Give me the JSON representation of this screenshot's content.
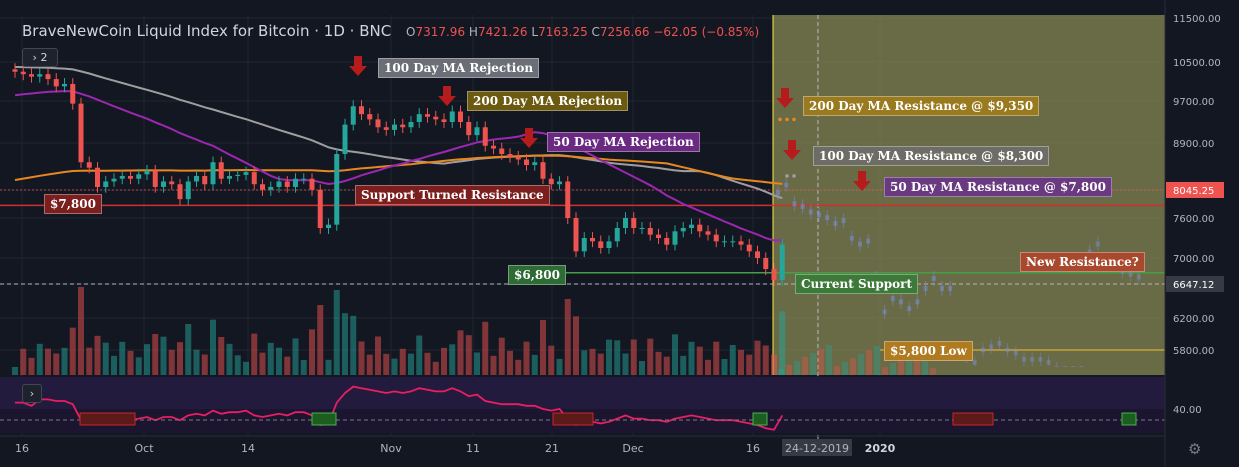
{
  "header": {
    "title": "BraveNewCoin Liquid Index for Bitcoin",
    "interval": "1D",
    "exchange": "BNC",
    "open_label": "O",
    "open": "7317.96",
    "high_label": "H",
    "high": "7421.26",
    "low_label": "L",
    "low": "7163.25",
    "close_label": "C",
    "close": "7256.66",
    "change": "−62.05 (−0.85%)",
    "legend_count": "2",
    "collapse_glyph": "›"
  },
  "colors": {
    "background": "#131722",
    "bull": "#26a69a",
    "bear": "#ef5350",
    "ma50": "#9c27b0",
    "ma100": "#9e9e9e",
    "ma200": "#e8871e",
    "resistance": "#d32f2f",
    "support": "#43a047",
    "projection": "#8f8f55",
    "rsi": "#e91e63"
  },
  "chart_data": {
    "type": "candlestick",
    "y_axis_ticks": [
      "11500.00",
      "10500.00",
      "9700.00",
      "8900.00",
      "8045.25",
      "7600.00",
      "7000.00",
      "6647.12",
      "6200.00",
      "5800.00"
    ],
    "x_axis_ticks": [
      "16",
      "Oct",
      "14",
      "Nov",
      "11",
      "21",
      "Dec",
      "16",
      "24-12-2019",
      "2020"
    ],
    "rsi_axis_tick": "40.00",
    "ylim": [
      5600,
      11500
    ],
    "x_dates": [
      "2019-09-16",
      "2019-09-17",
      "2019-09-18",
      "2019-09-19",
      "2019-09-20",
      "2019-09-21",
      "2019-09-22",
      "2019-09-23",
      "2019-09-24",
      "2019-09-25",
      "2019-09-26",
      "2019-09-27",
      "2019-09-28",
      "2019-09-29",
      "2019-09-30",
      "2019-10-01",
      "2019-10-02",
      "2019-10-03",
      "2019-10-04",
      "2019-10-05",
      "2019-10-06",
      "2019-10-07",
      "2019-10-08",
      "2019-10-09",
      "2019-10-10",
      "2019-10-11",
      "2019-10-12",
      "2019-10-13",
      "2019-10-14",
      "2019-10-15",
      "2019-10-16",
      "2019-10-17",
      "2019-10-18",
      "2019-10-19",
      "2019-10-20",
      "2019-10-21",
      "2019-10-22",
      "2019-10-23",
      "2019-10-24",
      "2019-10-25",
      "2019-10-26",
      "2019-10-27",
      "2019-10-28",
      "2019-10-29",
      "2019-10-30",
      "2019-10-31",
      "2019-11-01",
      "2019-11-02",
      "2019-11-03",
      "2019-11-04",
      "2019-11-05",
      "2019-11-06",
      "2019-11-07",
      "2019-11-08",
      "2019-11-09",
      "2019-11-10",
      "2019-11-11",
      "2019-11-12",
      "2019-11-13",
      "2019-11-14",
      "2019-11-15",
      "2019-11-16",
      "2019-11-17",
      "2019-11-18",
      "2019-11-19",
      "2019-11-20",
      "2019-11-21",
      "2019-11-22",
      "2019-11-23",
      "2019-11-24",
      "2019-11-25",
      "2019-11-26",
      "2019-11-27",
      "2019-11-28",
      "2019-11-29",
      "2019-11-30",
      "2019-12-01",
      "2019-12-02",
      "2019-12-03",
      "2019-12-04",
      "2019-12-05",
      "2019-12-06",
      "2019-12-07",
      "2019-12-08",
      "2019-12-09",
      "2019-12-10",
      "2019-12-11",
      "2019-12-12",
      "2019-12-13",
      "2019-12-14",
      "2019-12-15",
      "2019-12-16",
      "2019-12-17",
      "2019-12-18"
    ],
    "close": [
      10300,
      10250,
      10200,
      10250,
      10150,
      10000,
      10050,
      9650,
      8550,
      8450,
      8100,
      8200,
      8250,
      8300,
      8250,
      8330,
      8400,
      8100,
      8200,
      8150,
      7900,
      8200,
      8300,
      8150,
      8550,
      8250,
      8300,
      8320,
      8370,
      8150,
      8050,
      8100,
      8200,
      8100,
      8250,
      8250,
      8050,
      7450,
      7500,
      8700,
      9250,
      9600,
      9450,
      9350,
      9200,
      9150,
      9250,
      9200,
      9300,
      9450,
      9400,
      9350,
      9300,
      9500,
      9300,
      9050,
      9200,
      8850,
      8800,
      8700,
      8650,
      8600,
      8500,
      8550,
      8250,
      8150,
      8200,
      7600,
      7100,
      7300,
      7250,
      7150,
      7250,
      7450,
      7600,
      7450,
      7450,
      7350,
      7300,
      7200,
      7400,
      7450,
      7500,
      7400,
      7350,
      7250,
      7250,
      7250,
      7200,
      7100,
      7000,
      6850,
      6700,
      7200
    ],
    "rsi": [
      34,
      34,
      32,
      36,
      36,
      35,
      35,
      33,
      23,
      22,
      21,
      22,
      22,
      23,
      23,
      24,
      25,
      23,
      25,
      25,
      23,
      26,
      27,
      26,
      29,
      27,
      28,
      28,
      29,
      26,
      25,
      26,
      27,
      26,
      28,
      28,
      26,
      20,
      21,
      34,
      40,
      44,
      43,
      42,
      41,
      40,
      41,
      40,
      41,
      43,
      42,
      41,
      41,
      43,
      41,
      38,
      39,
      35,
      34,
      33,
      33,
      33,
      32,
      32,
      30,
      29,
      30,
      24,
      20,
      22,
      22,
      21,
      22,
      24,
      26,
      24,
      24,
      23,
      23,
      22,
      24,
      25,
      26,
      25,
      24,
      23,
      23,
      23,
      22,
      21,
      20,
      18,
      17,
      26
    ]
  },
  "moving_averages": {
    "ma50": {
      "name": "50 Day MA"
    },
    "ma100": {
      "name": "100 Day MA"
    },
    "ma200": {
      "name": "200 Day MA"
    }
  },
  "annotations": {
    "ma100_rejection": "100 Day MA Rejection",
    "ma200_rejection": "200 Day MA Rejection",
    "ma50_rejection": "50 Day MA Rejection",
    "support_turned_resistance": "Support Turned Resistance",
    "level_7800": "$7,800",
    "level_6800": "$6,800",
    "current_support": "Current Support",
    "ma200_resistance": "200 Day MA Resistance @ $9,350",
    "ma100_resistance": "100 Day MA Resistance @ $8,300",
    "ma50_resistance": "50 Day MA Resistance @ $7,800",
    "new_resistance": "New Resistance?",
    "low_5800": "$5,800 Low"
  },
  "settings_glyph": "⚙"
}
